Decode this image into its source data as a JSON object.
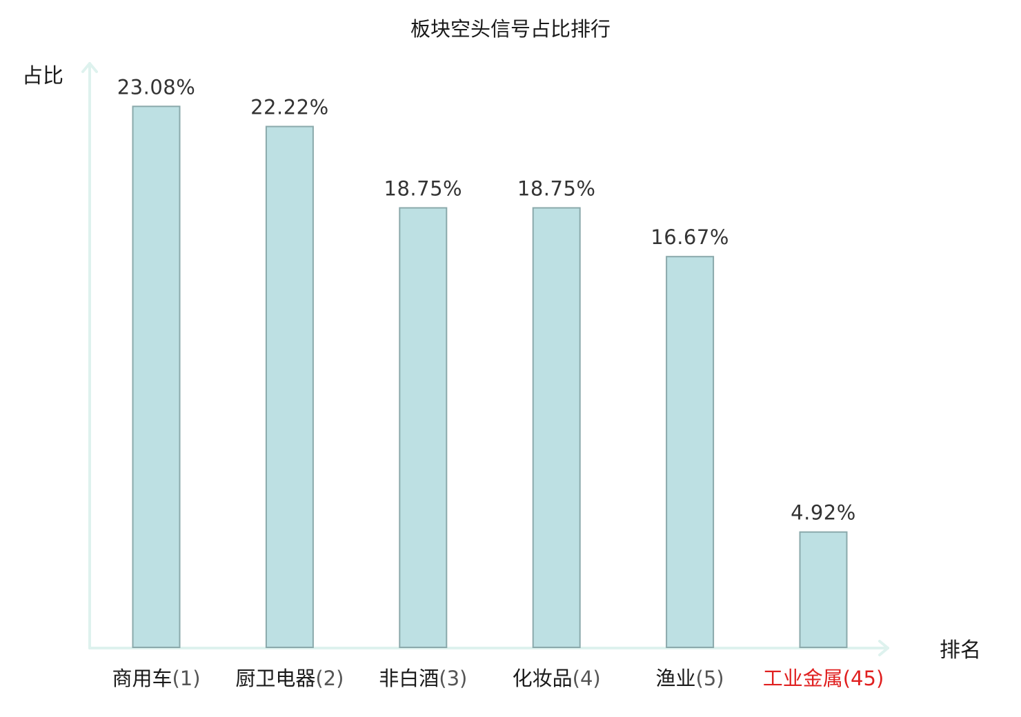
{
  "chart_data": {
    "type": "bar",
    "title": "板块空头信号占比排行",
    "xlabel": "排名",
    "ylabel": "占比",
    "categories": [
      "商用车",
      "厨卫电器",
      "非白酒",
      "化妆品",
      "渔业",
      "工业金属"
    ],
    "ranks": [
      "(1)",
      "(2)",
      "(3)",
      "(4)",
      "(5)",
      "(45)"
    ],
    "values": [
      23.08,
      22.22,
      18.75,
      18.75,
      16.67,
      4.92
    ],
    "value_labels": [
      "23.08%",
      "22.22%",
      "18.75%",
      "18.75%",
      "16.67%",
      "4.92%"
    ],
    "highlight_index": 5,
    "ylim": [
      0,
      25
    ],
    "grid": false,
    "legend": "none"
  },
  "colors": {
    "bar_fill": "#bde0e3",
    "bar_stroke": "#8aa9ab",
    "axis": "#def2ee",
    "text": "#1a1a1a",
    "value_text": "#333333",
    "highlight": "#e02020"
  }
}
